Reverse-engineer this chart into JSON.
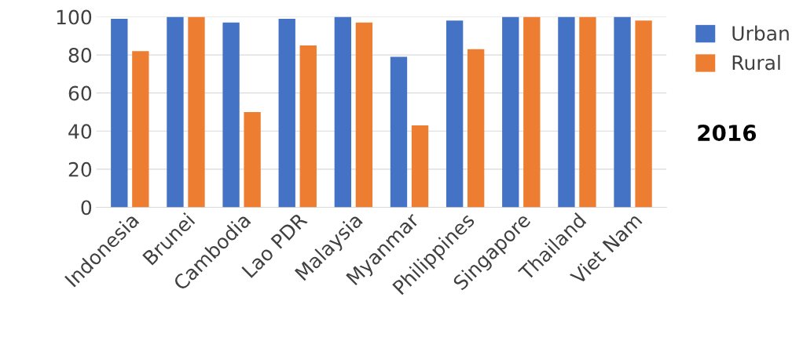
{
  "chart_data": {
    "type": "bar",
    "categories": [
      "Indonesia",
      "Brunei",
      "Cambodia",
      "Lao PDR",
      "Malaysia",
      "Myanmar",
      "Philippines",
      "Singapore",
      "Thailand",
      "Viet Nam"
    ],
    "series": [
      {
        "name": "Urban",
        "color": "#4472c4",
        "values": [
          99,
          100,
          97,
          99,
          100,
          79,
          98,
          100,
          100,
          100
        ]
      },
      {
        "name": "Rural",
        "color": "#ed7d31",
        "values": [
          82,
          100,
          50,
          85,
          97,
          43,
          83,
          100,
          100,
          98
        ]
      }
    ],
    "ylim": [
      0,
      100
    ],
    "yticks": [
      0,
      20,
      40,
      60,
      80,
      100
    ],
    "grid": "y",
    "legend": "top right",
    "annotations": [
      "2016"
    ]
  }
}
